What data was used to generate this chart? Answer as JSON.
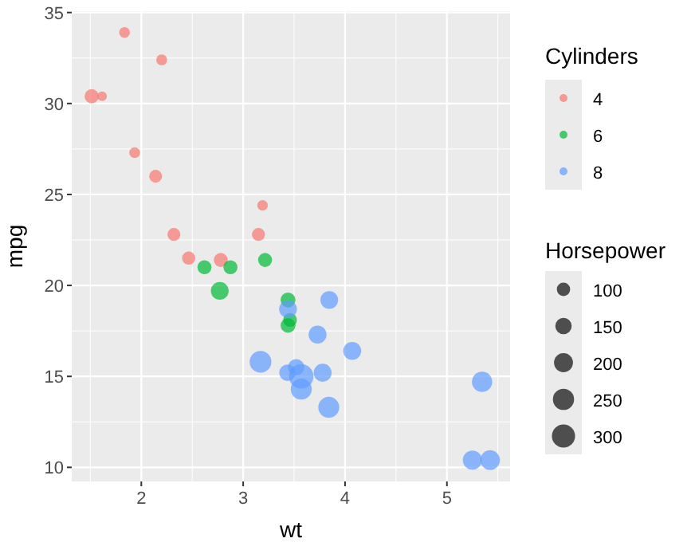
{
  "chart_data": {
    "type": "bubble",
    "xlabel": "wt",
    "ylabel": "mpg",
    "legend_title": "Cylinders",
    "annotations": [
      "Horsepower"
    ],
    "xlim": [
      1.317,
      5.62
    ],
    "ylim": [
      9.225,
      35.075
    ],
    "xticks": [
      2,
      3,
      4,
      5
    ],
    "yticks": [
      10,
      15,
      20,
      25,
      30,
      35
    ],
    "grid": true,
    "legend": "right",
    "marker": "circle",
    "size_legend": [
      100,
      150,
      200,
      250,
      300
    ],
    "series": [
      {
        "name": "4",
        "color": "#f8766d",
        "x": [
          2.32,
          3.19,
          3.15,
          2.2,
          1.615,
          1.835,
          2.465,
          1.935,
          2.14,
          1.513,
          2.78
        ],
        "values": [
          22.8,
          24.4,
          22.8,
          32.4,
          30.4,
          33.9,
          21.5,
          27.3,
          26.0,
          30.4,
          21.4
        ],
        "sizes": [
          93,
          62,
          95,
          66,
          52,
          65,
          97,
          66,
          91,
          113,
          109
        ]
      },
      {
        "name": "6",
        "color": "#00ba38",
        "x": [
          2.62,
          2.875,
          3.215,
          3.46,
          3.44,
          3.44,
          2.77
        ],
        "values": [
          21.0,
          21.0,
          21.4,
          18.1,
          19.2,
          17.8,
          19.7
        ],
        "sizes": [
          110,
          110,
          110,
          105,
          123,
          123,
          175
        ]
      },
      {
        "name": "8",
        "color": "#619cff",
        "x": [
          3.44,
          3.57,
          4.07,
          3.73,
          3.78,
          5.25,
          5.424,
          5.345,
          3.52,
          3.435,
          3.84,
          3.845,
          3.17,
          3.57
        ],
        "values": [
          18.7,
          14.3,
          16.4,
          17.3,
          15.2,
          10.4,
          10.4,
          14.7,
          15.5,
          15.2,
          13.3,
          19.2,
          15.8,
          15.0
        ],
        "sizes": [
          175,
          245,
          180,
          180,
          180,
          205,
          215,
          230,
          150,
          150,
          245,
          175,
          264,
          335
        ]
      }
    ]
  }
}
